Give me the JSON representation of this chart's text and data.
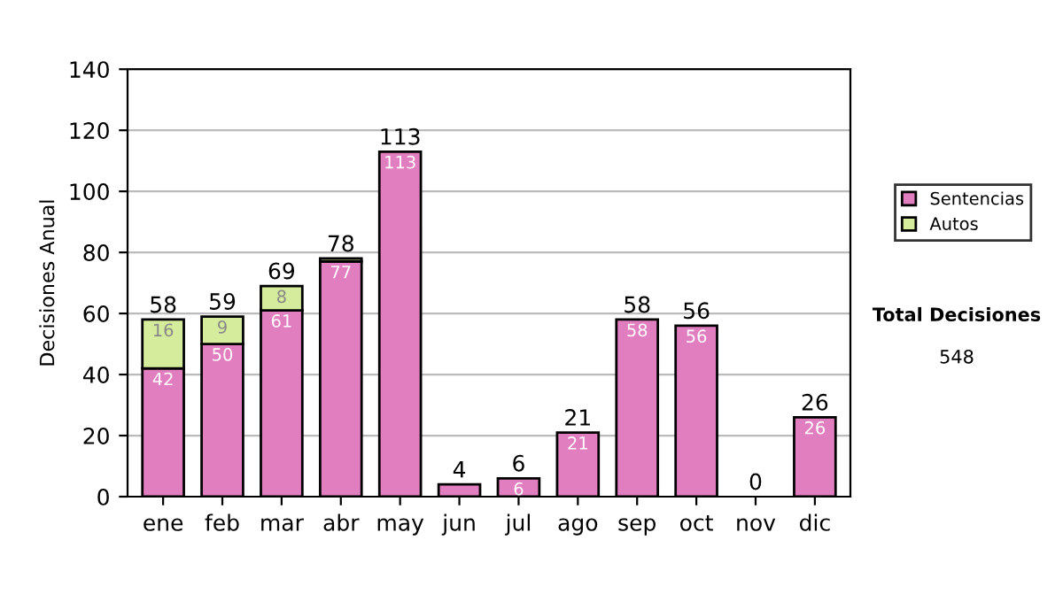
{
  "chart_data": {
    "type": "bar",
    "stacked": true,
    "ylabel": "Decisiones Anual",
    "categories": [
      "ene",
      "feb",
      "mar",
      "abr",
      "may",
      "jun",
      "jul",
      "ago",
      "sep",
      "oct",
      "nov",
      "dic"
    ],
    "series": [
      {
        "name": "Sentencias",
        "color": "#e07ec0",
        "values": [
          42,
          50,
          61,
          77,
          113,
          4,
          6,
          21,
          58,
          56,
          0,
          26
        ],
        "value_labels": [
          "42",
          "50",
          "61",
          "77",
          "113",
          null,
          "6",
          "21",
          "58",
          "56",
          null,
          "26"
        ]
      },
      {
        "name": "Autos",
        "color": "#d4ec9c",
        "values": [
          16,
          9,
          8,
          1,
          0,
          0,
          0,
          0,
          0,
          0,
          0,
          0
        ],
        "value_labels": [
          "16",
          "9",
          "8",
          null,
          null,
          null,
          null,
          null,
          null,
          null,
          null,
          null
        ]
      }
    ],
    "totals": [
      "58",
      "59",
      "69",
      "78",
      "113",
      "4",
      "6",
      "21",
      "58",
      "56",
      "0",
      "26"
    ],
    "ylim": [
      0,
      140
    ],
    "yticks": [
      0,
      20,
      40,
      60,
      80,
      100,
      120,
      140
    ],
    "grid": "y",
    "legend": "right",
    "annotations": [
      "Total Decisiones",
      "548"
    ]
  }
}
